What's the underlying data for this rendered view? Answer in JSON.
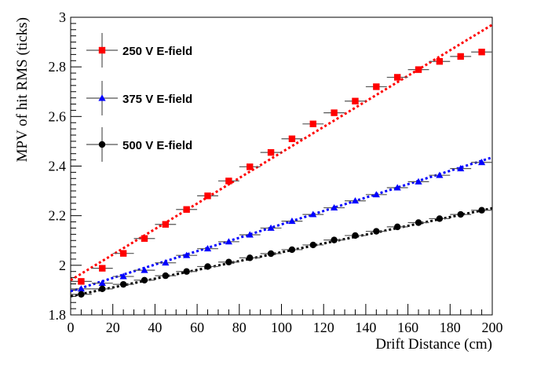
{
  "chart_data": {
    "type": "scatter",
    "xlabel": "Drift Distance (cm)",
    "ylabel": "MPV of hit RMS (ticks)",
    "xlim": [
      0,
      200
    ],
    "ylim": [
      1.8,
      3.0
    ],
    "x_ticks": [
      0,
      20,
      40,
      60,
      80,
      100,
      120,
      140,
      160,
      180,
      200
    ],
    "x_tick_labels": [
      "0",
      "20",
      "40",
      "60",
      "80",
      "100",
      "120",
      "140",
      "160",
      "180",
      "200"
    ],
    "y_ticks": [
      1.8,
      2.0,
      2.2,
      2.4,
      2.6,
      2.8,
      3.0
    ],
    "y_tick_labels": [
      "1.8",
      "2",
      "2.2",
      "2.4",
      "2.6",
      "2.8",
      "3"
    ],
    "grid": false,
    "legend_position": "top-left",
    "x": [
      5,
      15,
      25,
      35,
      45,
      55,
      65,
      75,
      85,
      95,
      105,
      115,
      125,
      135,
      145,
      155,
      165,
      175,
      185,
      195
    ],
    "x_error": 5,
    "series": [
      {
        "name": "250 V E-field",
        "color": "#ff0000",
        "marker": "square",
        "values": [
          1.935,
          1.988,
          2.048,
          2.108,
          2.165,
          2.225,
          2.28,
          2.34,
          2.397,
          2.455,
          2.51,
          2.57,
          2.615,
          2.662,
          2.72,
          2.758,
          2.789,
          2.822,
          2.842,
          2.86
        ],
        "fit": {
          "color": "#ff0000",
          "x": [
            0,
            200
          ],
          "y": [
            1.94,
            2.97
          ]
        }
      },
      {
        "name": "375 V E-field",
        "color": "#0000ff",
        "marker": "triangle",
        "values": [
          1.905,
          1.928,
          1.955,
          1.98,
          2.01,
          2.04,
          2.067,
          2.095,
          2.123,
          2.15,
          2.178,
          2.205,
          2.232,
          2.26,
          2.285,
          2.313,
          2.337,
          2.363,
          2.39,
          2.415
        ],
        "fit": {
          "color": "#0000ff",
          "x": [
            0,
            200
          ],
          "y": [
            1.895,
            2.435
          ]
        }
      },
      {
        "name": "500 V E-field",
        "color": "#000000",
        "marker": "circle",
        "values": [
          1.883,
          1.905,
          1.923,
          1.94,
          1.958,
          1.975,
          1.995,
          2.013,
          2.03,
          2.047,
          2.063,
          2.082,
          2.102,
          2.12,
          2.137,
          2.155,
          2.172,
          2.188,
          2.205,
          2.222
        ],
        "fit": {
          "color": "#000000",
          "x": [
            0,
            200
          ],
          "y": [
            1.875,
            2.23
          ]
        }
      }
    ]
  }
}
